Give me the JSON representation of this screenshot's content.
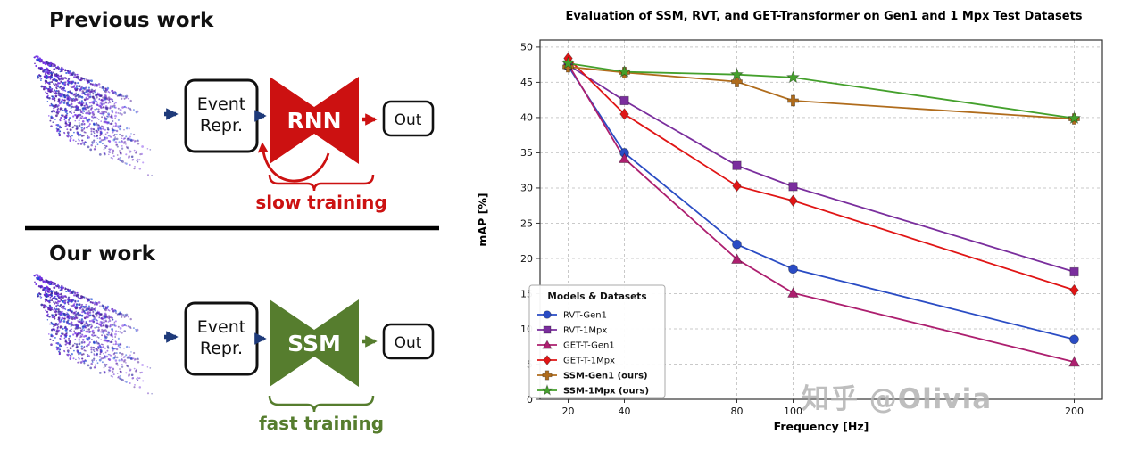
{
  "diagram": {
    "previous": {
      "heading": "Previous work",
      "event_repr_line1": "Event",
      "event_repr_line2": "Repr.",
      "model_label": "RNN",
      "out_label": "Out",
      "annotation": "slow training"
    },
    "our": {
      "heading": "Our work",
      "event_repr_line1": "Event",
      "event_repr_line2": "Repr.",
      "model_label": "SSM",
      "out_label": "Out",
      "annotation": "fast training"
    },
    "colors": {
      "rnn_red": "#cc1111",
      "ssm_green": "#567d2e",
      "arrow_navy": "#1e3a7a"
    }
  },
  "chart_data": {
    "type": "line",
    "title": "Evaluation of SSM, RVT, and GET-Transformer on Gen1 and 1 Mpx Test Datasets",
    "xlabel": "Frequency [Hz]",
    "ylabel": "mAP [%]",
    "x": [
      20,
      40,
      80,
      100,
      200
    ],
    "x_ticks": [
      20,
      40,
      80,
      100,
      200
    ],
    "y_ticks": [
      0,
      5,
      10,
      15,
      20,
      25,
      30,
      35,
      40,
      45,
      50
    ],
    "xlim": [
      10,
      210
    ],
    "ylim": [
      0,
      51
    ],
    "grid": true,
    "legend_title": "Models & Datasets",
    "legend_position": "lower left",
    "series": [
      {
        "name": "RVT-Gen1",
        "marker": "circle",
        "color": "#2a4cc4",
        "bold": false,
        "values": [
          47.3,
          35.0,
          22.0,
          18.5,
          8.5
        ]
      },
      {
        "name": "RVT-1Mpx",
        "marker": "square",
        "color": "#7a2e9d",
        "bold": false,
        "values": [
          47.5,
          42.4,
          33.2,
          30.2,
          18.1
        ]
      },
      {
        "name": "GET-T-Gen1",
        "marker": "triangle",
        "color": "#ad1f6f",
        "bold": false,
        "values": [
          47.6,
          34.2,
          19.9,
          15.1,
          5.3
        ]
      },
      {
        "name": "GET-T-1Mpx",
        "marker": "diamond",
        "color": "#e01515",
        "bold": false,
        "values": [
          48.4,
          40.5,
          30.3,
          28.2,
          15.5
        ]
      },
      {
        "name": "SSM-Gen1 (ours)",
        "marker": "plus",
        "color": "#b06c1c",
        "bold": true,
        "values": [
          47.2,
          46.4,
          45.1,
          42.4,
          39.8
        ]
      },
      {
        "name": "SSM-1Mpx (ours)",
        "marker": "star",
        "color": "#44a02c",
        "bold": true,
        "values": [
          47.7,
          46.5,
          46.1,
          45.7,
          39.9
        ]
      }
    ]
  },
  "watermark": "知乎 @Olivia"
}
